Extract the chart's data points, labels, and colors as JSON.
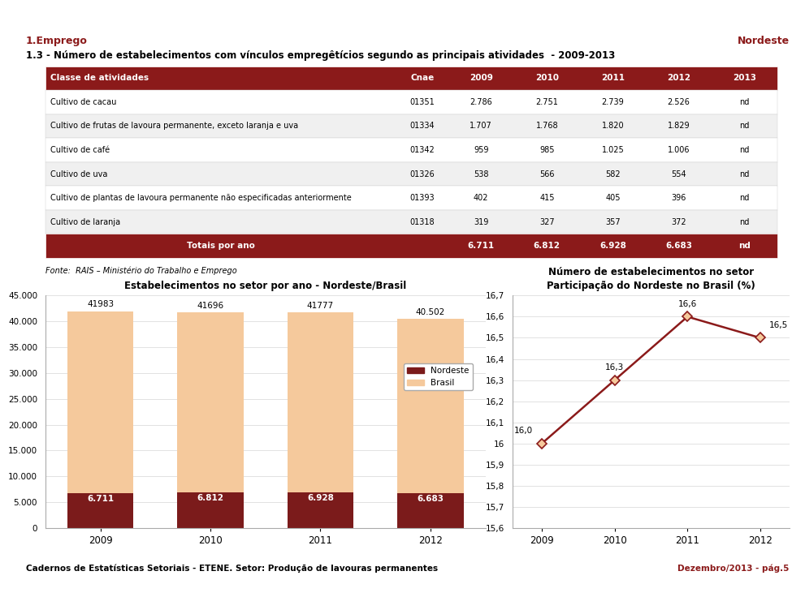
{
  "page_title_left": "1.Emprego",
  "page_title_right": "Nordeste",
  "section_title": "1.3 - Número de estabelecimentos com vínculos empregêtícios segundo as principais atividades  - 2009-2013",
  "table_header": [
    "Classe de atividades",
    "Cnae",
    "2009",
    "2010",
    "2011",
    "2012",
    "2013"
  ],
  "table_rows": [
    [
      "Cultivo de cacau",
      "01351",
      "2.786",
      "2.751",
      "2.739",
      "2.526",
      "nd"
    ],
    [
      "Cultivo de frutas de lavoura permanente, exceto laranja e uva",
      "01334",
      "1.707",
      "1.768",
      "1.820",
      "1.829",
      "nd"
    ],
    [
      "Cultivo de café",
      "01342",
      "959",
      "985",
      "1.025",
      "1.006",
      "nd"
    ],
    [
      "Cultivo de uva",
      "01326",
      "538",
      "566",
      "582",
      "554",
      "nd"
    ],
    [
      "Cultivo de plantas de lavoura permanente não especificadas anteriormente",
      "01393",
      "402",
      "415",
      "405",
      "396",
      "nd"
    ],
    [
      "Cultivo de laranja",
      "01318",
      "319",
      "327",
      "357",
      "372",
      "nd"
    ]
  ],
  "totals_row": [
    "Totais por ano",
    "",
    "6.711",
    "6.812",
    "6.928",
    "6.683",
    "nd"
  ],
  "fonte_text": "Fonte:  RAIS – Ministério do Trabalho e Emprego",
  "bar_chart_title": "Estabelecimentos no setor por ano - Nordeste/Brasil",
  "bar_years": [
    "2009",
    "2010",
    "2011",
    "2012"
  ],
  "nordeste_values": [
    6711,
    6812,
    6928,
    6683
  ],
  "brasil_values": [
    41983,
    41696,
    41777,
    40502
  ],
  "bar_nordeste_color": "#7B1B1B",
  "bar_brasil_color": "#F5C99C",
  "bar_nordeste_label": "Nordeste",
  "bar_brasil_label": "Brasil",
  "nordeste_labels": [
    "6.711",
    "6.812",
    "6.928",
    "6.683"
  ],
  "brasil_labels": [
    "41983",
    "41696",
    "41777",
    "40.502"
  ],
  "line_chart_title1": "Número de estabelecimentos no setor",
  "line_chart_title2": "Participação do Nordeste no Brasil (%)",
  "line_years": [
    "2009",
    "2010",
    "2011",
    "2012"
  ],
  "line_values": [
    16.0,
    16.3,
    16.6,
    16.5
  ],
  "line_color": "#8B1A1A",
  "line_ylim": [
    15.6,
    16.7
  ],
  "line_yticks": [
    15.6,
    15.7,
    15.8,
    15.9,
    16.0,
    16.1,
    16.2,
    16.3,
    16.4,
    16.5,
    16.6,
    16.7
  ],
  "line_labels": [
    "16,0",
    "16,3",
    "16,6",
    "16,5"
  ],
  "bar_ylim": [
    0,
    45000
  ],
  "bar_yticks": [
    0,
    5000,
    10000,
    15000,
    20000,
    25000,
    30000,
    35000,
    40000,
    45000
  ],
  "bar_ytick_labels": [
    "0",
    "5.000",
    "10.000",
    "15.000",
    "20.000",
    "25.000",
    "30.000",
    "35.000",
    "40.000",
    "45.000"
  ],
  "header_bg_color": "#8B1A1A",
  "header_text_color": "#FFFFFF",
  "totals_bg_color": "#8B1A1A",
  "totals_text_color": "#FFFFFF",
  "row_bg_even": "#FFFFFF",
  "row_bg_odd": "#F0F0F0",
  "grid_line_color": "#CCCCCC",
  "footer_left": "Cadernos de Estatísticas Setoriais - ETENE. Setor: Produção de lavouras permanentes",
  "footer_right": "Dezembro/2013 - pág.5",
  "footer_line_color": "#8B1A1A",
  "page_bg_color": "#FFFFFF",
  "title_line_color": "#8B1A1A"
}
